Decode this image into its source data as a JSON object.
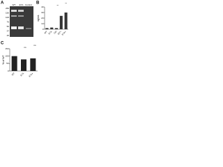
{
  "panels": [
    "A",
    "B",
    "C"
  ],
  "blot": {
    "lanes": [
      "WT",
      "E7A",
      "Control"
    ],
    "markers": [
      "250",
      "150",
      "100",
      "75",
      "50",
      "37",
      "25"
    ]
  },
  "chart_data": [
    {
      "type": "bar",
      "ylabel": "ng/mL",
      "categories": [
        "WT",
        "E7A",
        "Ctrl",
        "WT+",
        "E7A+"
      ],
      "values": [
        2,
        3,
        2,
        24,
        30
      ],
      "color": "#333333",
      "ylim": [
        0,
        40
      ],
      "yticks": [
        0,
        10,
        20,
        30,
        40
      ],
      "annotations": [
        "**",
        "**"
      ]
    },
    {
      "type": "bar",
      "ylabel": "% of WT",
      "categories": [
        "WT",
        "E7A",
        "E7A+"
      ],
      "values": [
        100,
        78,
        85
      ],
      "color": "#222222",
      "ylim": [
        0,
        150
      ],
      "yticks": [
        0,
        50,
        100,
        150
      ],
      "annotations": [
        "ns",
        "ns"
      ]
    }
  ]
}
